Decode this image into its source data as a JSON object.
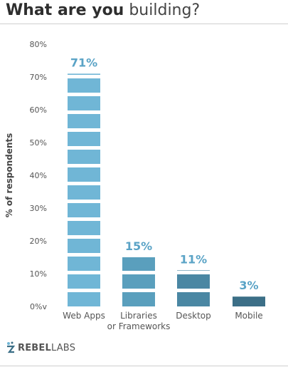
{
  "title": {
    "bold": "What are you",
    "rest": "building?"
  },
  "logo": {
    "brand": "REBEL",
    "suffix": "LABS"
  },
  "colors": {
    "web_apps": "#70b6d6",
    "libraries": "#5a9fbd",
    "desktop": "#4a87a3",
    "mobile": "#3c6f87",
    "data_label": "#5aa3c6",
    "axis_text": "#555555"
  },
  "chart_data": {
    "type": "bar",
    "title": "What are you building?",
    "ylabel": "% of respondents",
    "xlabel": "",
    "ylim": [
      0,
      80
    ],
    "yticks": [
      "0%v",
      "10%",
      "20%",
      "30%",
      "40%",
      "50%",
      "60%",
      "70%",
      "80%"
    ],
    "categories": [
      "Web Apps",
      "Libraries\nor Frameworks",
      "Desktop",
      "Mobile"
    ],
    "values": [
      71,
      15,
      11,
      3
    ],
    "value_labels": [
      "71%",
      "15%",
      "11%",
      "3%"
    ],
    "grid": false,
    "legend": "none"
  }
}
